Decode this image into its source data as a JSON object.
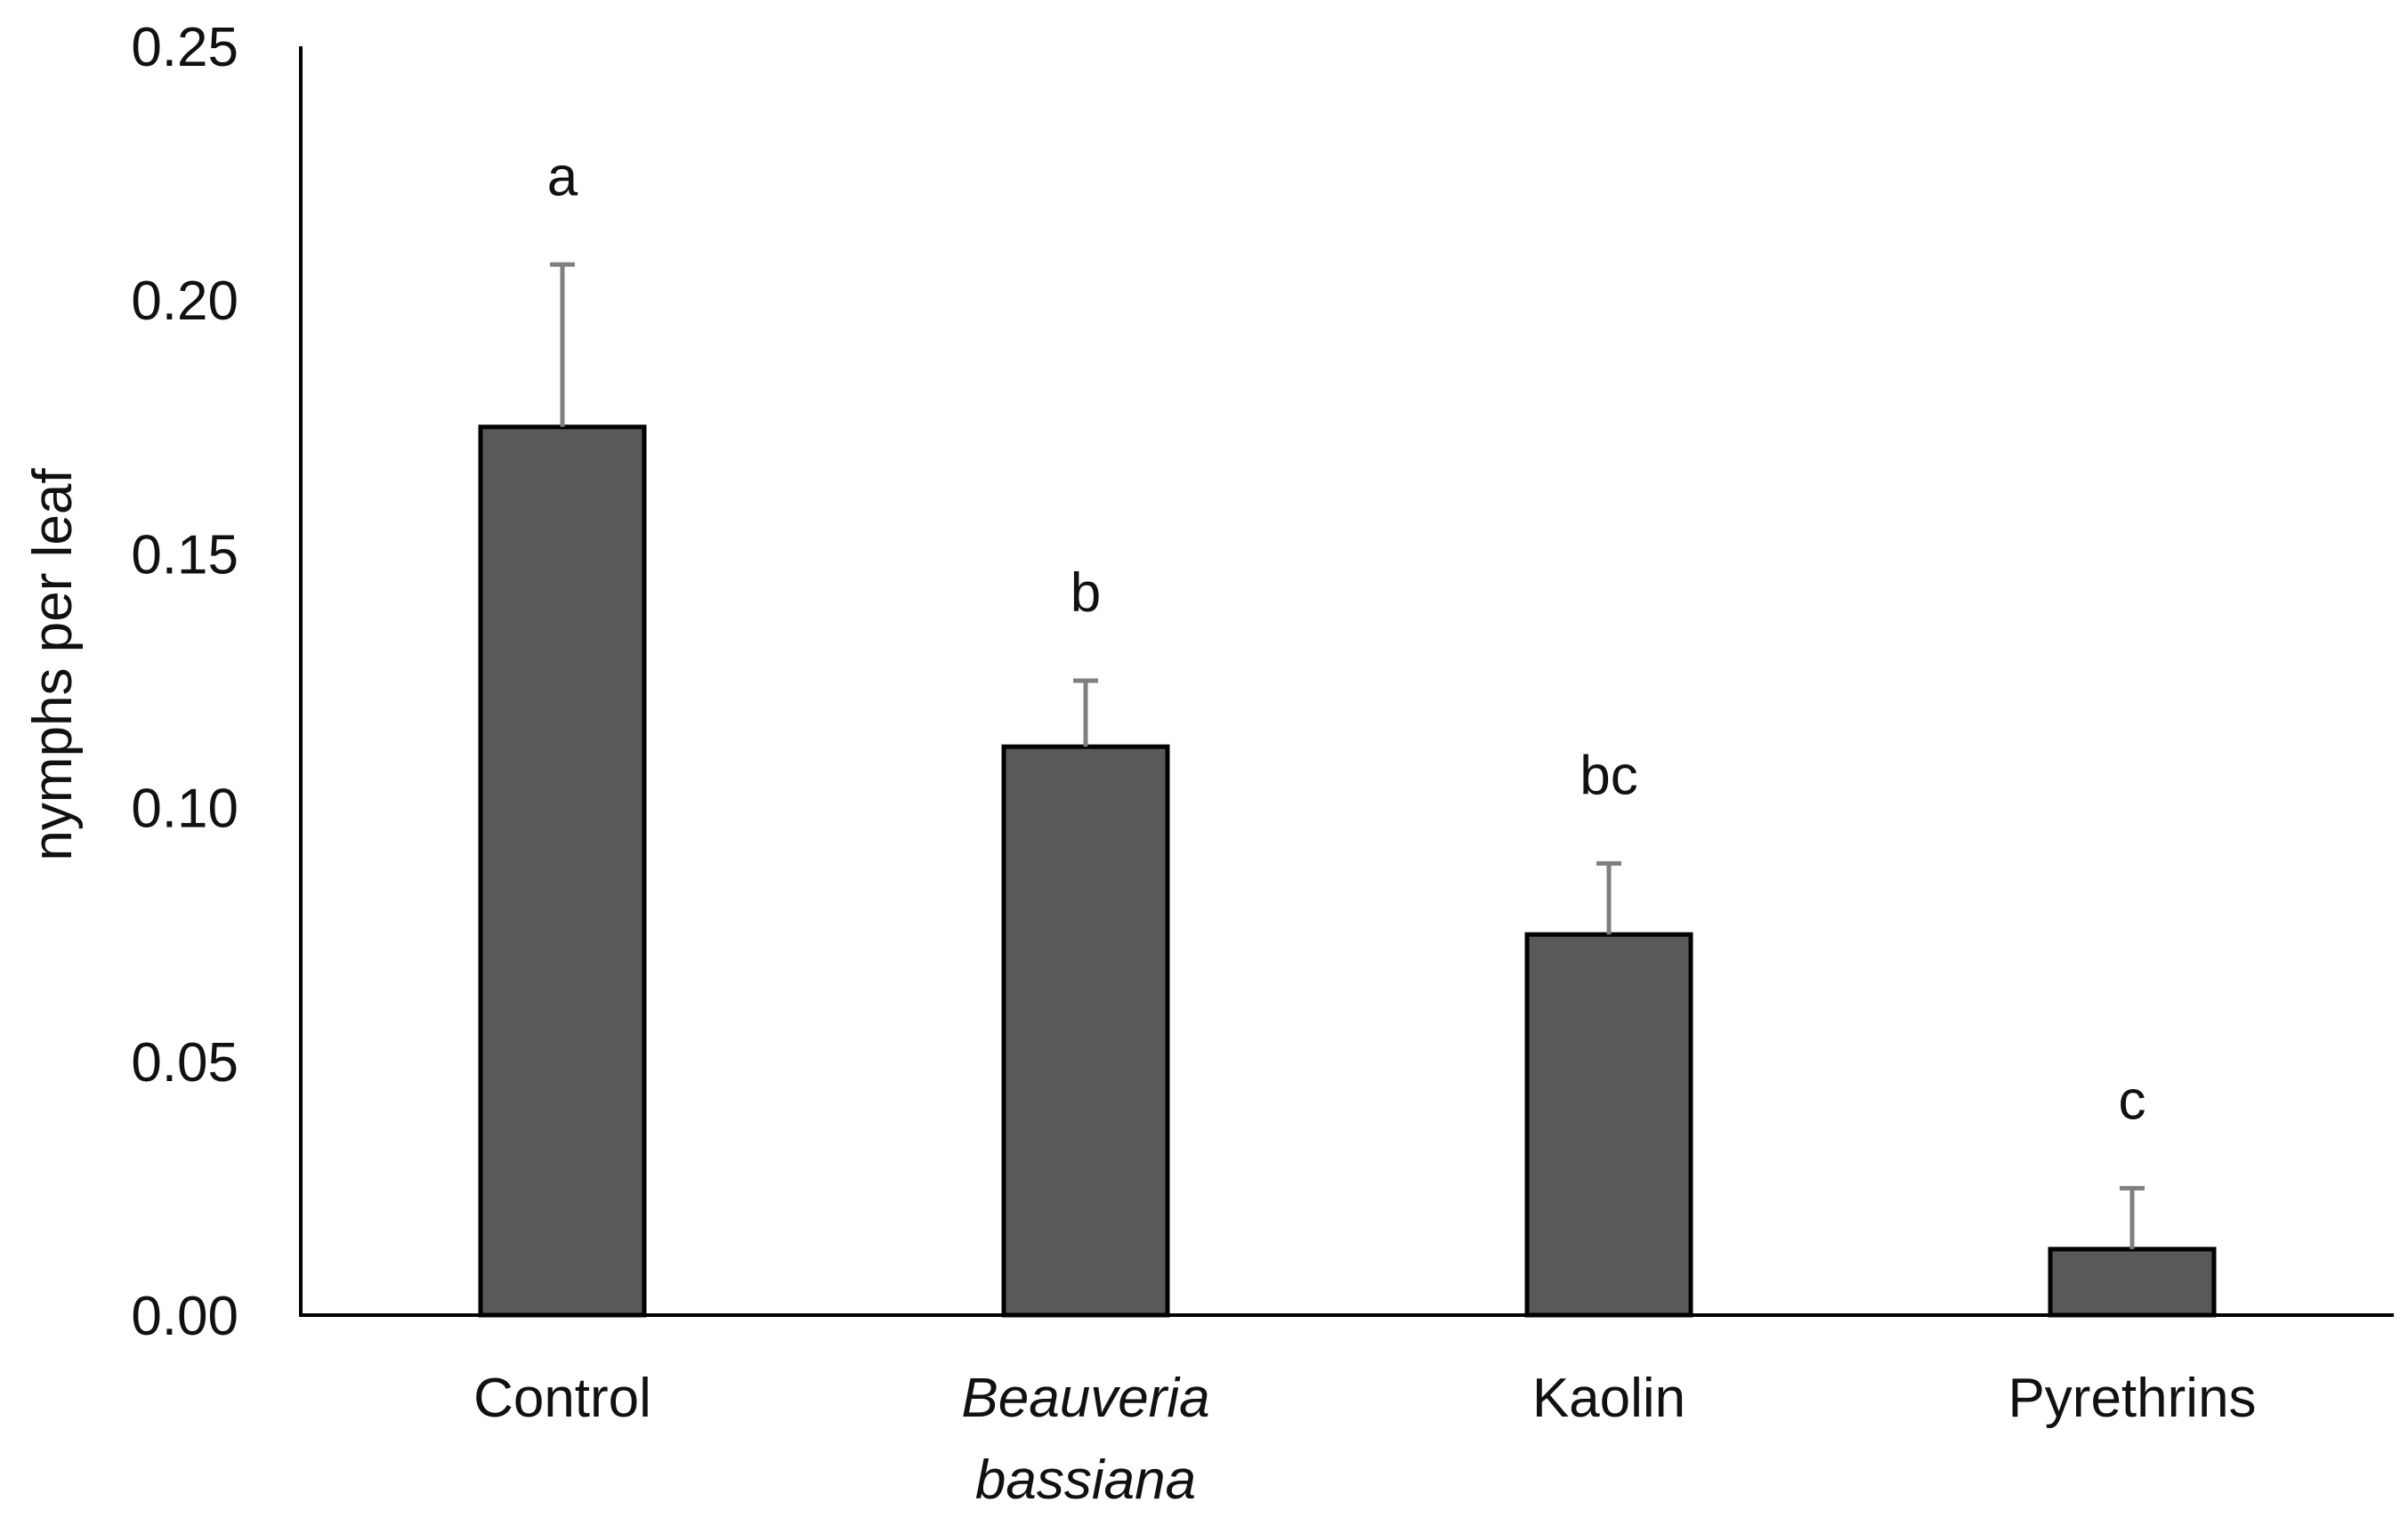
{
  "chart_data": {
    "type": "bar",
    "title": "",
    "xlabel": "",
    "ylabel": "nymphs per leaf",
    "ylim": [
      0,
      0.25
    ],
    "yticks": [
      "0.00",
      "0.05",
      "0.10",
      "0.15",
      "0.20",
      "0.25"
    ],
    "ytick_values": [
      0,
      0.05,
      0.1,
      0.15,
      0.2,
      0.25
    ],
    "grid": false,
    "legend": "none",
    "categories": [
      {
        "lines": [
          "Control"
        ],
        "italic": false
      },
      {
        "lines": [
          "Beauveria",
          "bassiana"
        ],
        "italic": true
      },
      {
        "lines": [
          "Kaolin"
        ],
        "italic": false
      },
      {
        "lines": [
          "Pyrethrins"
        ],
        "italic": false
      }
    ],
    "values": [
      0.175,
      0.112,
      0.075,
      0.013
    ],
    "error_upper": [
      0.207,
      0.125,
      0.089,
      0.025
    ],
    "significance_letters": [
      "a",
      "b",
      "bc",
      "c"
    ],
    "bar_color": "#595959",
    "bar_edge_color": "#000000",
    "error_color": "#7f7f7f",
    "axis_color": "#000000"
  }
}
